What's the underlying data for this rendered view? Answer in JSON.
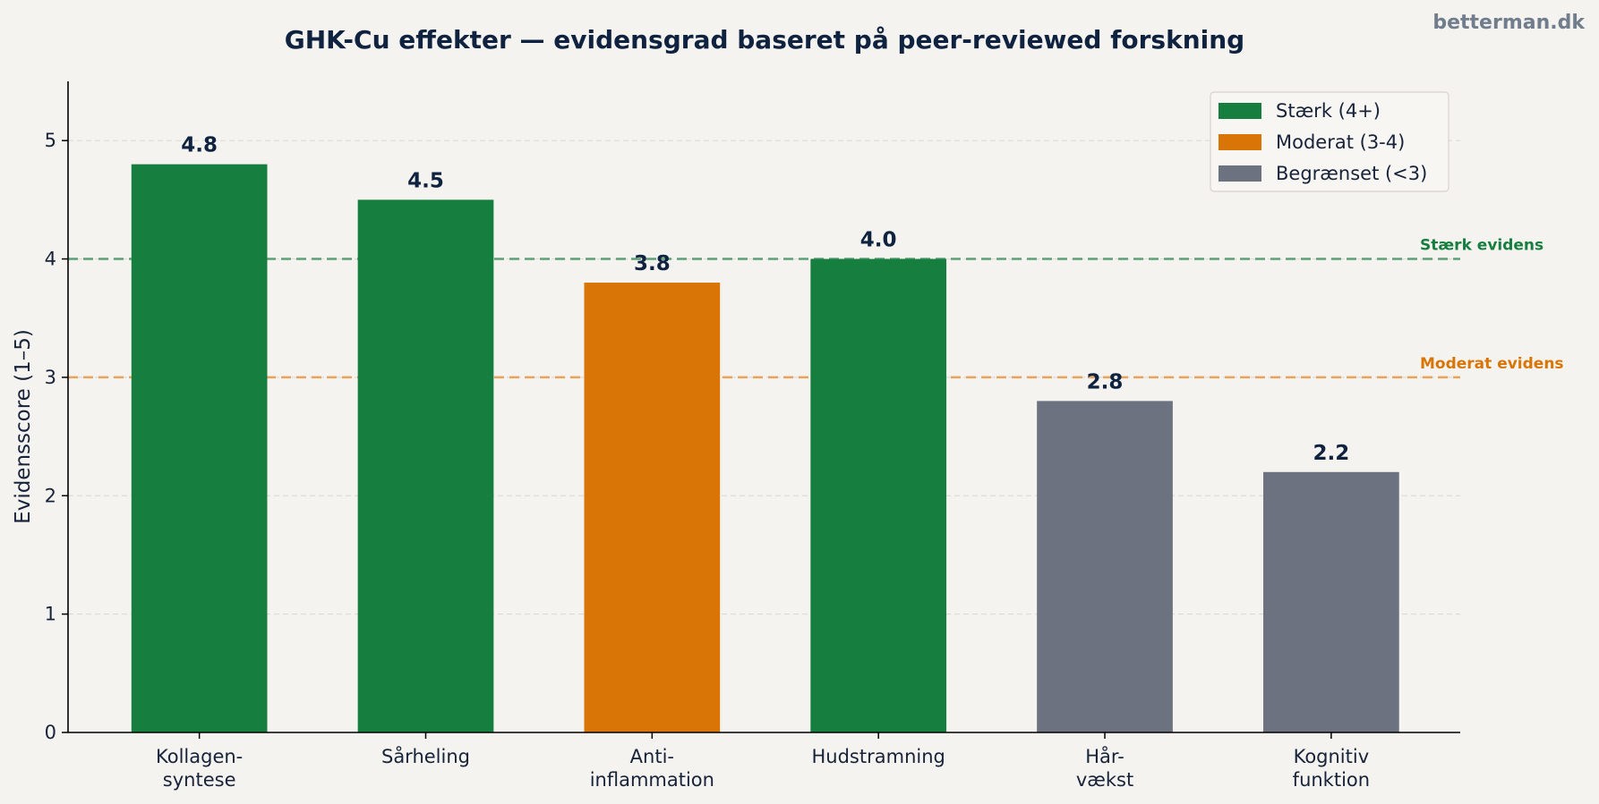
{
  "watermark": "betterman.dk",
  "colors": {
    "strong": "#167f3f",
    "moderate": "#d97506",
    "limited": "#6c7280",
    "strong_line": "#5f9f78",
    "moderate_line": "#eaa35a",
    "grid": "#dedbd5",
    "axis": "#000000",
    "text": "#0f2340"
  },
  "chart_data": {
    "type": "bar",
    "title": "GHK-Cu effekter — evidensgrad baseret på peer-reviewed forskning",
    "xlabel": "",
    "ylabel": "Evidensscore (1–5)",
    "ylim": [
      0,
      5.5
    ],
    "yticks": [
      "0",
      "1",
      "2",
      "3",
      "4",
      "5"
    ],
    "grid": "horizontal dashed",
    "categories": [
      [
        "Kollagen-",
        "syntese"
      ],
      [
        "Sårheling"
      ],
      [
        "Anti-",
        "inflammation"
      ],
      [
        "Hudstramning"
      ],
      [
        "Hår-",
        "vækst"
      ],
      [
        "Kognitiv",
        "funktion"
      ]
    ],
    "values": [
      4.8,
      4.5,
      3.8,
      4.0,
      2.8,
      2.2
    ],
    "value_labels": [
      "4.8",
      "4.5",
      "3.8",
      "4.0",
      "2.8",
      "2.2"
    ],
    "bar_groups": [
      "strong",
      "strong",
      "moderate",
      "strong",
      "limited",
      "limited"
    ],
    "reference_lines": [
      {
        "value": 4,
        "label": "Stærk evidens",
        "color": "strong"
      },
      {
        "value": 3,
        "label": "Moderat evidens",
        "color": "moderate"
      }
    ],
    "legend": {
      "placement": "top-right",
      "entries": [
        {
          "label": "Stærk (4+)",
          "group": "strong"
        },
        {
          "label": "Moderat (3-4)",
          "group": "moderate"
        },
        {
          "label": "Begrænset (<3)",
          "group": "limited"
        }
      ]
    }
  }
}
